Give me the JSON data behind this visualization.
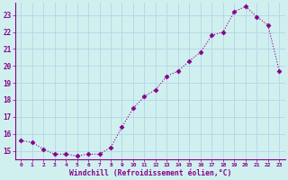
{
  "x": [
    0,
    1,
    2,
    3,
    4,
    5,
    6,
    7,
    8,
    9,
    10,
    11,
    12,
    13,
    14,
    15,
    16,
    17,
    18,
    19,
    20,
    21,
    22,
    23
  ],
  "y": [
    15.6,
    15.5,
    15.1,
    14.8,
    14.8,
    14.7,
    14.8,
    14.8,
    15.2,
    16.4,
    17.5,
    18.2,
    18.6,
    19.4,
    19.7,
    20.3,
    20.8,
    21.8,
    22.0,
    23.2,
    23.5,
    22.9,
    22.4,
    19.7
  ],
  "ylim": [
    14.5,
    23.7
  ],
  "yticks": [
    15,
    16,
    17,
    18,
    19,
    20,
    21,
    22,
    23
  ],
  "xlabel": "Windchill (Refroidissement éolien,°C)",
  "line_color": "#880088",
  "marker": "D",
  "marker_size": 2.5,
  "bg_color": "#d0f0f0",
  "grid_color": "#b8d8e8",
  "tick_color": "#880088",
  "label_color": "#880088",
  "figsize": [
    3.2,
    2.0
  ],
  "dpi": 100
}
